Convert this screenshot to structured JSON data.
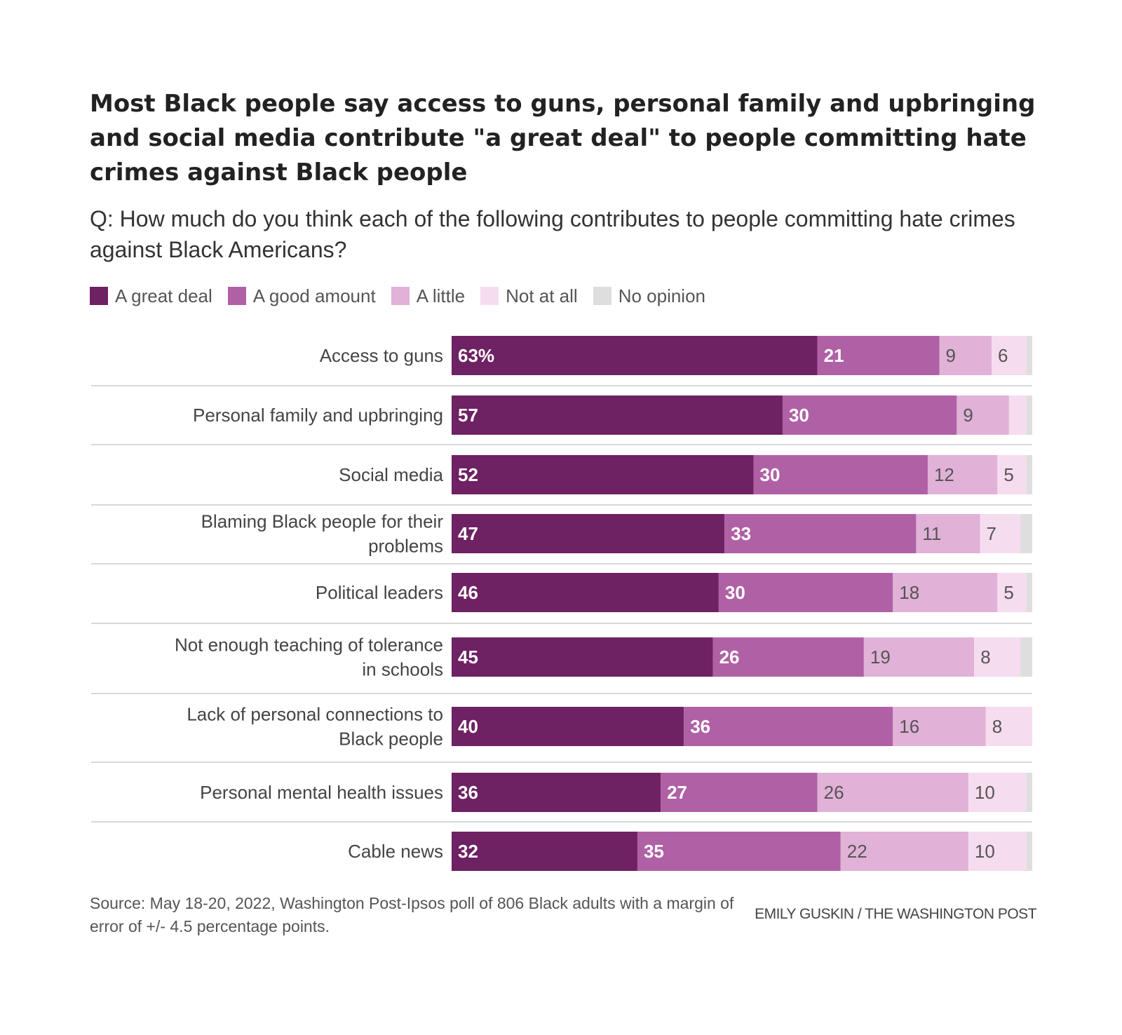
{
  "title": "Most Black people say access to guns, personal family and upbringing and social media contribute \"a great deal\" to people committing hate crimes against Black people",
  "subtitle": "Q: How much do you think each of the following contributes to people committing hate crimes against Black Americans?",
  "source": "Source: May 18-20, 2022, Washington Post-Ipsos poll of 806 Black adults with a margin of error of +/- 4.5 percentage points.",
  "credit": "EMILY GUSKIN / THE WASHINGTON POST",
  "colors": {
    "great_deal": "#6e2163",
    "good_amount": "#b060a5",
    "a_little": "#e1b1d7",
    "not_at_all": "#f6dcef",
    "no_opinion": "#dedede",
    "separator": "#d8d8d8"
  },
  "chart_data": {
    "type": "bar",
    "orientation": "horizontal",
    "stacked": true,
    "legend_position": "top",
    "grid": false,
    "xlim": [
      0,
      100
    ],
    "categories": [
      "Access to guns",
      "Personal family and upbringing",
      "Social media",
      "Blaming Black people for their problems",
      "Political leaders",
      "Not enough teaching of tolerance in schools",
      "Lack of personal connections to Black people",
      "Personal mental health issues",
      "Cable news"
    ],
    "series": [
      {
        "name": "A great deal",
        "color": "#6e2163",
        "values": [
          63,
          57,
          52,
          47,
          46,
          45,
          40,
          36,
          32
        ],
        "labels": [
          "63%",
          "57",
          "52",
          "47",
          "46",
          "45",
          "40",
          "36",
          "32"
        ]
      },
      {
        "name": "A good amount",
        "color": "#b060a5",
        "values": [
          21,
          30,
          30,
          33,
          30,
          26,
          36,
          27,
          35
        ],
        "labels": [
          "21",
          "30",
          "30",
          "33",
          "30",
          "26",
          "36",
          "27",
          "35"
        ]
      },
      {
        "name": "A little",
        "color": "#e1b1d7",
        "values": [
          9,
          9,
          12,
          11,
          18,
          19,
          16,
          26,
          22
        ],
        "labels": [
          "9",
          "9",
          "12",
          "11",
          "18",
          "19",
          "16",
          "26",
          "22"
        ]
      },
      {
        "name": "Not at all",
        "color": "#f6dcef",
        "values": [
          6,
          3,
          5,
          7,
          5,
          8,
          8,
          10,
          10
        ],
        "labels": [
          "6",
          "",
          "5",
          "7",
          "5",
          "8",
          "8",
          "10",
          "10"
        ]
      },
      {
        "name": "No opinion",
        "color": "#dedede",
        "values": [
          1,
          2,
          1,
          1,
          1,
          1,
          0,
          1,
          1
        ],
        "labels": [
          "",
          "",
          "",
          "",
          "",
          "",
          "",
          "",
          ""
        ]
      }
    ]
  }
}
